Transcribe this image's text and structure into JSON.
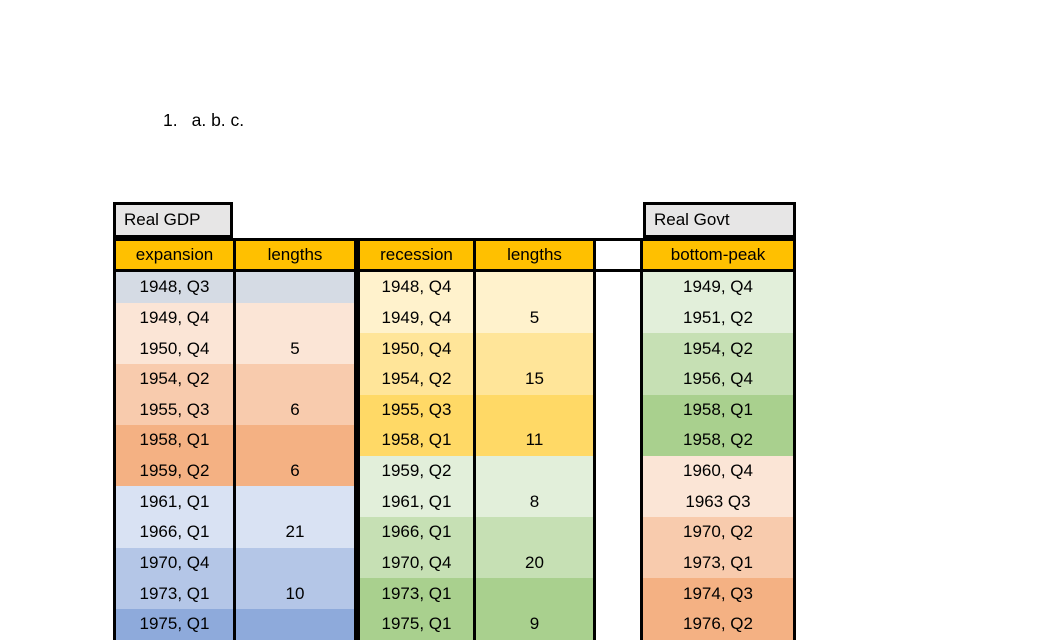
{
  "document": {
    "list_item": {
      "marker": "1.",
      "text": "a. b. c."
    }
  },
  "colors": {
    "header_gold": "#FFC000",
    "title_gray": "#E7E6E6",
    "border_black": "#000000",
    "pair_shades": {
      "blue_gray": "#D5DBE4",
      "peach_light": "#FBE5D6",
      "peach_mid": "#F8CBAD",
      "orange": "#F4B183",
      "blue_light": "#D9E2F3",
      "blue_mid": "#B4C6E7",
      "blue_dark": "#8EAADB",
      "yellow_light": "#FFF2CC",
      "yellow_mid": "#FFE599",
      "gold_dark": "#FFD966",
      "green_light": "#E2EFDA",
      "green_mid": "#C6E0B4",
      "green_dark": "#A9D08E"
    }
  },
  "tables": {
    "gdp_title": "Real GDP",
    "govt_title": "Real Govt",
    "headers": {
      "expansion": "expansion",
      "expansion_lengths": "lengths",
      "recession": "recession",
      "recession_lengths": "lengths",
      "bottom_peak": "bottom-peak"
    }
  },
  "rows": [
    {
      "expansion": "1948, Q3",
      "expansion_length": "",
      "recession": "1948, Q4",
      "recession_length": "",
      "bottom_peak": "1949, Q4",
      "gdp_color": "#D5DBE4",
      "rec_color": "#FFF2CC",
      "govt_color": "#E2EFDA"
    },
    {
      "expansion": "1949, Q4",
      "expansion_length": "",
      "recession": "1949, Q4",
      "recession_length": "5",
      "bottom_peak": "1951, Q2",
      "gdp_color": "#FBE5D6",
      "rec_color": "#FFF2CC",
      "govt_color": "#E2EFDA"
    },
    {
      "expansion": "1950, Q4",
      "expansion_length": "5",
      "recession": "1950, Q4",
      "recession_length": "",
      "bottom_peak": "1954, Q2",
      "gdp_color": "#FBE5D6",
      "rec_color": "#FFE599",
      "govt_color": "#C6E0B4"
    },
    {
      "expansion": "1954, Q2",
      "expansion_length": "",
      "recession": "1954, Q2",
      "recession_length": "15",
      "bottom_peak": "1956, Q4",
      "gdp_color": "#F8CBAD",
      "rec_color": "#FFE599",
      "govt_color": "#C6E0B4"
    },
    {
      "expansion": "1955, Q3",
      "expansion_length": "6",
      "recession": "1955, Q3",
      "recession_length": "",
      "bottom_peak": "1958, Q1",
      "gdp_color": "#F8CBAD",
      "rec_color": "#FFD966",
      "govt_color": "#A9D08E"
    },
    {
      "expansion": "1958, Q1",
      "expansion_length": "",
      "recession": "1958, Q1",
      "recession_length": "11",
      "bottom_peak": "1958, Q2",
      "gdp_color": "#F4B183",
      "rec_color": "#FFD966",
      "govt_color": "#A9D08E"
    },
    {
      "expansion": "1959, Q2",
      "expansion_length": "6",
      "recession": "1959, Q2",
      "recession_length": "",
      "bottom_peak": "1960, Q4",
      "gdp_color": "#F4B183",
      "rec_color": "#E2EFDA",
      "govt_color": "#FBE5D6"
    },
    {
      "expansion": "1961, Q1",
      "expansion_length": "",
      "recession": "1961, Q1",
      "recession_length": "8",
      "bottom_peak": "1963 Q3",
      "gdp_color": "#D9E2F3",
      "rec_color": "#E2EFDA",
      "govt_color": "#FBE5D6"
    },
    {
      "expansion": "1966, Q1",
      "expansion_length": "21",
      "recession": "1966, Q1",
      "recession_length": "",
      "bottom_peak": "1970, Q2",
      "gdp_color": "#D9E2F3",
      "rec_color": "#C6E0B4",
      "govt_color": "#F8CBAD"
    },
    {
      "expansion": "1970, Q4",
      "expansion_length": "",
      "recession": "1970, Q4",
      "recession_length": "20",
      "bottom_peak": "1973, Q1",
      "gdp_color": "#B4C6E7",
      "rec_color": "#C6E0B4",
      "govt_color": "#F8CBAD"
    },
    {
      "expansion": "1973, Q1",
      "expansion_length": "10",
      "recession": "1973, Q1",
      "recession_length": "",
      "bottom_peak": "1974, Q3",
      "gdp_color": "#B4C6E7",
      "rec_color": "#A9D08E",
      "govt_color": "#F4B183"
    },
    {
      "expansion": "1975, Q1",
      "expansion_length": "",
      "recession": "1975, Q1",
      "recession_length": "9",
      "bottom_peak": "1976, Q2",
      "gdp_color": "#8EAADB",
      "rec_color": "#A9D08E",
      "govt_color": "#F4B183"
    }
  ]
}
